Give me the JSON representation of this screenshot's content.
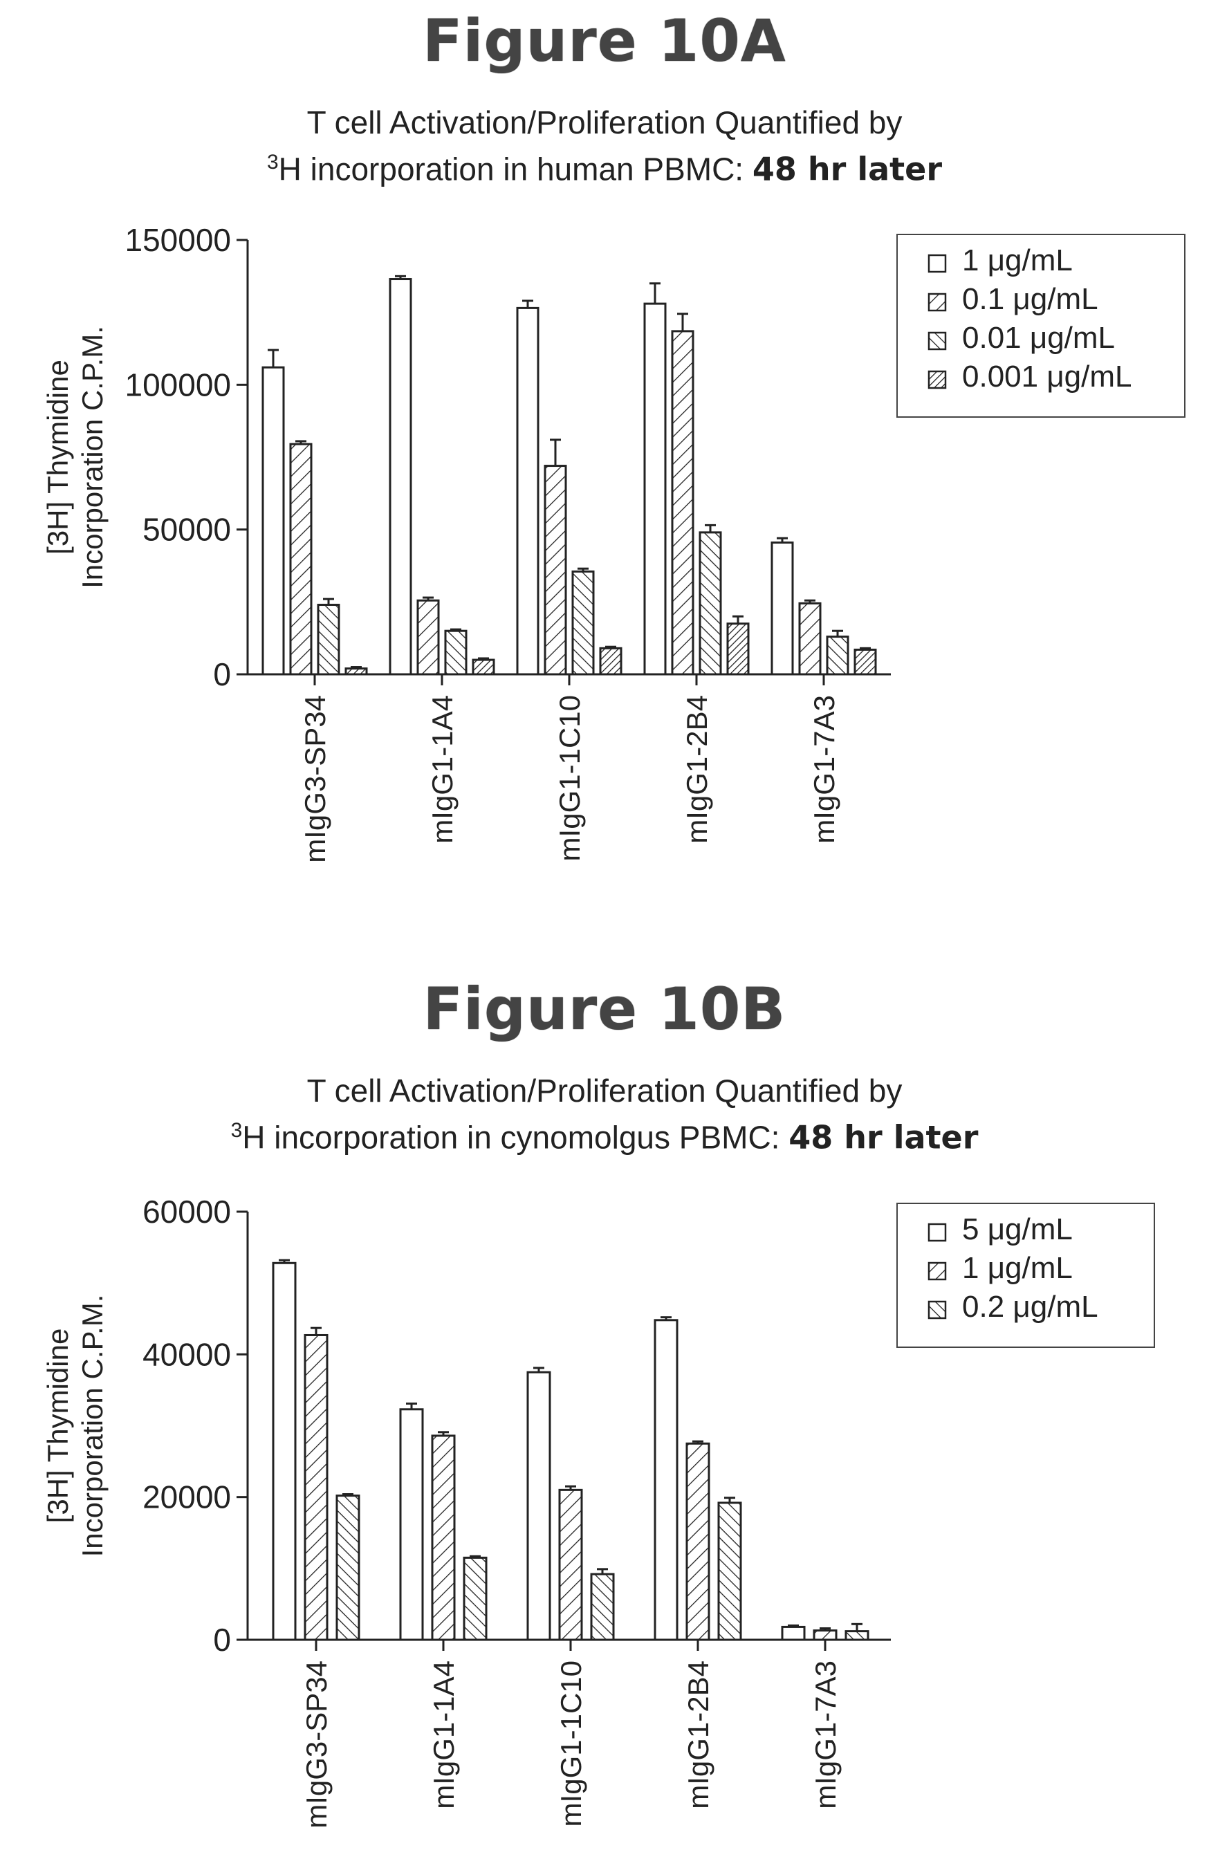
{
  "figures": [
    {
      "heading": "Figure 10A",
      "subtitle_line1": "T cell Activation/Proliferation Quantified by",
      "subtitle_sup": "3",
      "subtitle_line2_pre": "H incorporation in human PBMC: ",
      "subtitle_line2_bold": "48 hr later"
    },
    {
      "heading": "Figure 10B",
      "subtitle_line1": "T cell Activation/Proliferation Quantified by",
      "subtitle_sup": "3",
      "subtitle_line2_pre": "H incorporation in cynomolgus PBMC: ",
      "subtitle_line2_bold": "48 hr later"
    }
  ],
  "chart_data": [
    {
      "type": "bar",
      "title": "T cell Activation/Proliferation Quantified by 3H incorporation in human PBMC: 48 hr later",
      "ylabel_line1": "[3H] Thymidine",
      "ylabel_line2": "Incorporation C.P.M.",
      "xlabel": "",
      "ylim": [
        0,
        150000
      ],
      "yticks": [
        0,
        50000,
        100000,
        150000
      ],
      "ytick_labels": [
        "0",
        "50000",
        "100000",
        "150000"
      ],
      "categories": [
        "mIgG3-SP34",
        "mIgG1-1A4",
        "mIgG1-1C10",
        "mIgG1-2B4",
        "mIgG1-7A3"
      ],
      "legend_position": "top-right",
      "grid": false,
      "series": [
        {
          "name": "1 μg/mL",
          "pattern": "open",
          "values": [
            106000,
            136500,
            126500,
            128000,
            45500
          ],
          "errors": [
            6000,
            1000,
            2500,
            7000,
            1500
          ]
        },
        {
          "name": "0.1 μg/mL",
          "pattern": "hatch-light",
          "values": [
            79500,
            25500,
            72000,
            118500,
            24500
          ],
          "errors": [
            1000,
            1000,
            9000,
            6000,
            1000
          ]
        },
        {
          "name": "0.01 μg/mL",
          "pattern": "hatch-medium",
          "values": [
            24000,
            15000,
            35500,
            49000,
            13000
          ],
          "errors": [
            2000,
            500,
            1000,
            2500,
            2000
          ]
        },
        {
          "name": "0.001 μg/mL",
          "pattern": "hatch-dense",
          "values": [
            2000,
            5000,
            9000,
            17500,
            8500
          ],
          "errors": [
            500,
            500,
            500,
            2500,
            500
          ]
        }
      ]
    },
    {
      "type": "bar",
      "title": "T cell Activation/Proliferation Quantified by 3H incorporation in cynomolgus PBMC: 48 hr later",
      "ylabel_line1": "[3H] Thymidine",
      "ylabel_line2": "Incorporation C.P.M.",
      "xlabel": "",
      "ylim": [
        0,
        60000
      ],
      "yticks": [
        0,
        20000,
        40000,
        60000
      ],
      "ytick_labels": [
        "0",
        "20000",
        "40000",
        "60000"
      ],
      "categories": [
        "mIgG3-SP34",
        "mIgG1-1A4",
        "mIgG1-1C10",
        "mIgG1-2B4",
        "mIgG1-7A3"
      ],
      "legend_position": "top-right",
      "grid": false,
      "series": [
        {
          "name": "5 μg/mL",
          "pattern": "open",
          "values": [
            52800,
            32300,
            37500,
            44800,
            1800
          ],
          "errors": [
            400,
            800,
            600,
            400,
            200
          ]
        },
        {
          "name": "1 μg/mL",
          "pattern": "hatch-light",
          "values": [
            42700,
            28600,
            21000,
            27500,
            1300
          ],
          "errors": [
            1000,
            500,
            500,
            300,
            300
          ]
        },
        {
          "name": "0.2 μg/mL",
          "pattern": "hatch-medium",
          "values": [
            20200,
            11500,
            9200,
            19200,
            1200
          ],
          "errors": [
            200,
            200,
            700,
            700,
            1000
          ]
        }
      ]
    }
  ],
  "colors": {
    "ink": "#222222",
    "fill": "#ffffff"
  }
}
